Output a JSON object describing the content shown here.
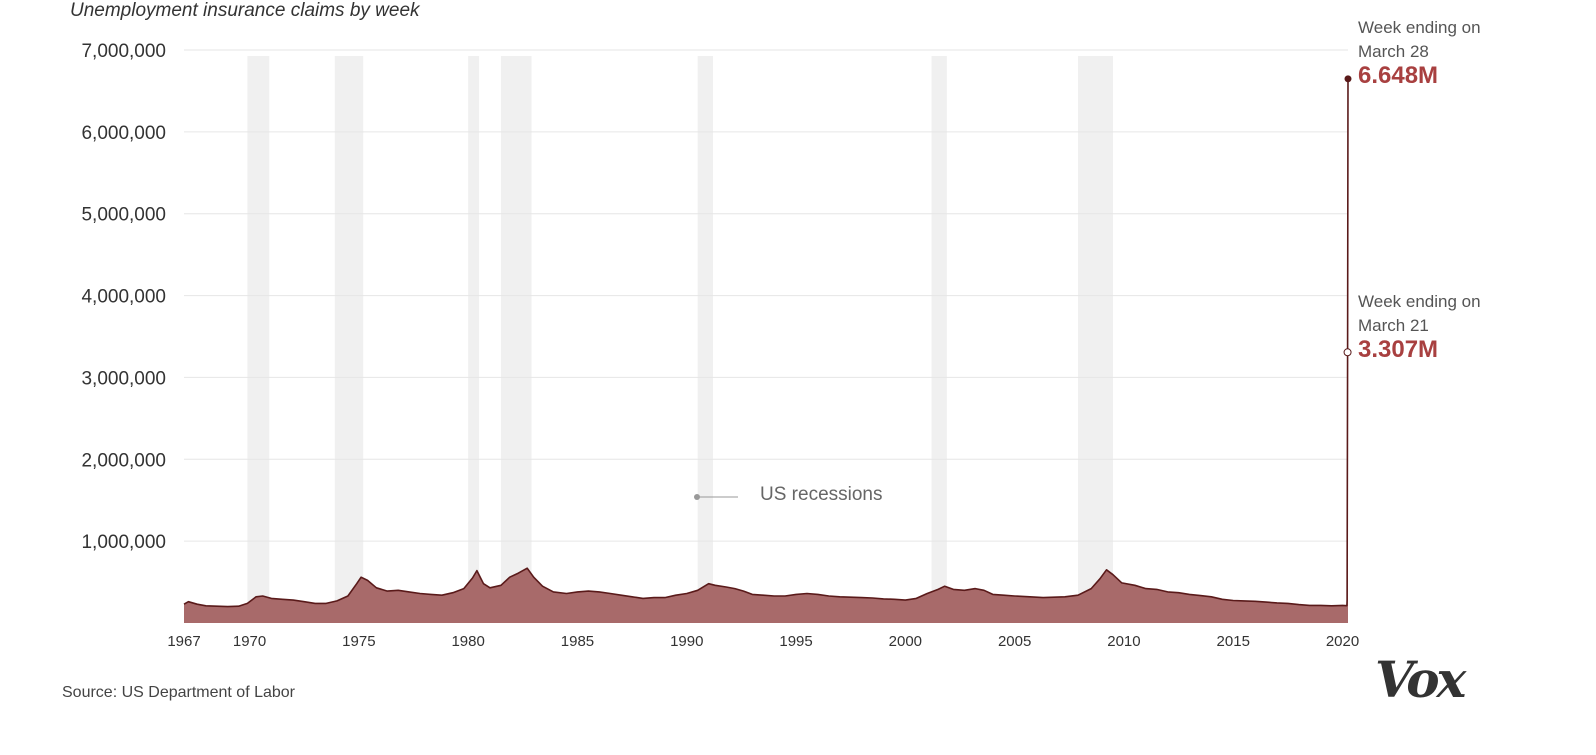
{
  "subtitle": "Unemployment insurance claims by week",
  "source": "Source: US Department of Labor",
  "logo": "Vox",
  "recession_label": "US recessions",
  "annotations": {
    "top": {
      "line1": "Week ending on",
      "line2": "March 28",
      "value": "6.648M"
    },
    "mid": {
      "line1": "Week ending on",
      "line2": "March 21",
      "value": "3.307M"
    }
  },
  "colors": {
    "fill": "#a86a6a",
    "line": "#5a1a1a",
    "accent": "#a84040",
    "recession": "#f0f0f0",
    "grid": "#e6e6e6"
  },
  "chart_data": {
    "type": "area",
    "title": "",
    "xlabel": "",
    "ylabel": "",
    "ylim": [
      0,
      7000000
    ],
    "xlim": [
      1967,
      2020.25
    ],
    "grid": true,
    "y_ticks": [
      {
        "value": 1000000,
        "label": "1,000,000"
      },
      {
        "value": 2000000,
        "label": "2,000,000"
      },
      {
        "value": 3000000,
        "label": "3,000,000"
      },
      {
        "value": 4000000,
        "label": "4,000,000"
      },
      {
        "value": 5000000,
        "label": "5,000,000"
      },
      {
        "value": 6000000,
        "label": "6,000,000"
      },
      {
        "value": 7000000,
        "label": "7,000,000"
      }
    ],
    "x_ticks": [
      {
        "value": 1967,
        "label": "1967"
      },
      {
        "value": 1970,
        "label": "1970"
      },
      {
        "value": 1975,
        "label": "1975"
      },
      {
        "value": 1980,
        "label": "1980"
      },
      {
        "value": 1985,
        "label": "1985"
      },
      {
        "value": 1990,
        "label": "1990"
      },
      {
        "value": 1995,
        "label": "1995"
      },
      {
        "value": 2000,
        "label": "2000"
      },
      {
        "value": 2005,
        "label": "2005"
      },
      {
        "value": 2010,
        "label": "2010"
      },
      {
        "value": 2015,
        "label": "2015"
      },
      {
        "value": 2020,
        "label": "2020"
      }
    ],
    "recessions": [
      [
        1969.9,
        1970.9
      ],
      [
        1973.9,
        1975.2
      ],
      [
        1980.0,
        1980.5
      ],
      [
        1981.5,
        1982.9
      ],
      [
        1990.5,
        1991.2
      ],
      [
        2001.2,
        2001.9
      ],
      [
        2007.9,
        2009.5
      ]
    ],
    "series": [
      {
        "points": [
          [
            1967.0,
            230000
          ],
          [
            1967.2,
            260000
          ],
          [
            1967.6,
            230000
          ],
          [
            1968.0,
            210000
          ],
          [
            1968.5,
            205000
          ],
          [
            1969.0,
            200000
          ],
          [
            1969.5,
            205000
          ],
          [
            1969.9,
            240000
          ],
          [
            1970.3,
            320000
          ],
          [
            1970.6,
            330000
          ],
          [
            1971.0,
            300000
          ],
          [
            1971.5,
            290000
          ],
          [
            1972.0,
            280000
          ],
          [
            1972.5,
            260000
          ],
          [
            1973.0,
            240000
          ],
          [
            1973.5,
            240000
          ],
          [
            1974.0,
            270000
          ],
          [
            1974.5,
            330000
          ],
          [
            1974.9,
            480000
          ],
          [
            1975.1,
            560000
          ],
          [
            1975.4,
            520000
          ],
          [
            1975.8,
            430000
          ],
          [
            1976.3,
            390000
          ],
          [
            1976.8,
            400000
          ],
          [
            1977.3,
            380000
          ],
          [
            1977.8,
            360000
          ],
          [
            1978.3,
            350000
          ],
          [
            1978.8,
            340000
          ],
          [
            1979.3,
            370000
          ],
          [
            1979.8,
            420000
          ],
          [
            1980.2,
            550000
          ],
          [
            1980.4,
            640000
          ],
          [
            1980.7,
            480000
          ],
          [
            1981.0,
            430000
          ],
          [
            1981.5,
            460000
          ],
          [
            1981.9,
            560000
          ],
          [
            1982.3,
            610000
          ],
          [
            1982.7,
            670000
          ],
          [
            1983.0,
            560000
          ],
          [
            1983.4,
            450000
          ],
          [
            1983.9,
            380000
          ],
          [
            1984.5,
            360000
          ],
          [
            1985.0,
            380000
          ],
          [
            1985.5,
            390000
          ],
          [
            1986.0,
            380000
          ],
          [
            1986.5,
            360000
          ],
          [
            1987.0,
            340000
          ],
          [
            1987.5,
            320000
          ],
          [
            1988.0,
            300000
          ],
          [
            1988.5,
            310000
          ],
          [
            1989.0,
            310000
          ],
          [
            1989.5,
            340000
          ],
          [
            1990.0,
            360000
          ],
          [
            1990.5,
            400000
          ],
          [
            1991.0,
            480000
          ],
          [
            1991.3,
            460000
          ],
          [
            1991.8,
            440000
          ],
          [
            1992.2,
            420000
          ],
          [
            1992.6,
            390000
          ],
          [
            1993.0,
            350000
          ],
          [
            1993.5,
            340000
          ],
          [
            1994.0,
            330000
          ],
          [
            1994.5,
            330000
          ],
          [
            1995.0,
            350000
          ],
          [
            1995.5,
            360000
          ],
          [
            1996.0,
            350000
          ],
          [
            1996.5,
            330000
          ],
          [
            1997.0,
            320000
          ],
          [
            1997.5,
            315000
          ],
          [
            1998.0,
            310000
          ],
          [
            1998.5,
            305000
          ],
          [
            1999.0,
            295000
          ],
          [
            1999.5,
            290000
          ],
          [
            2000.0,
            280000
          ],
          [
            2000.5,
            300000
          ],
          [
            2001.0,
            360000
          ],
          [
            2001.5,
            410000
          ],
          [
            2001.8,
            450000
          ],
          [
            2002.2,
            410000
          ],
          [
            2002.7,
            400000
          ],
          [
            2003.2,
            420000
          ],
          [
            2003.6,
            400000
          ],
          [
            2004.0,
            350000
          ],
          [
            2004.5,
            340000
          ],
          [
            2005.0,
            330000
          ],
          [
            2005.7,
            320000
          ],
          [
            2006.3,
            310000
          ],
          [
            2006.8,
            315000
          ],
          [
            2007.3,
            320000
          ],
          [
            2007.9,
            340000
          ],
          [
            2008.5,
            420000
          ],
          [
            2008.9,
            540000
          ],
          [
            2009.2,
            650000
          ],
          [
            2009.5,
            590000
          ],
          [
            2009.9,
            490000
          ],
          [
            2010.5,
            460000
          ],
          [
            2011.0,
            420000
          ],
          [
            2011.5,
            410000
          ],
          [
            2012.0,
            380000
          ],
          [
            2012.5,
            370000
          ],
          [
            2013.0,
            350000
          ],
          [
            2013.5,
            335000
          ],
          [
            2014.0,
            320000
          ],
          [
            2014.5,
            290000
          ],
          [
            2015.0,
            275000
          ],
          [
            2015.5,
            270000
          ],
          [
            2016.0,
            265000
          ],
          [
            2016.5,
            255000
          ],
          [
            2017.0,
            245000
          ],
          [
            2017.5,
            240000
          ],
          [
            2018.0,
            225000
          ],
          [
            2018.5,
            215000
          ],
          [
            2019.0,
            215000
          ],
          [
            2019.5,
            210000
          ],
          [
            2020.0,
            215000
          ],
          [
            2020.2,
            211000
          ],
          [
            2020.21,
            281000
          ],
          [
            2020.23,
            3307000
          ],
          [
            2020.25,
            6648000
          ]
        ]
      }
    ]
  }
}
